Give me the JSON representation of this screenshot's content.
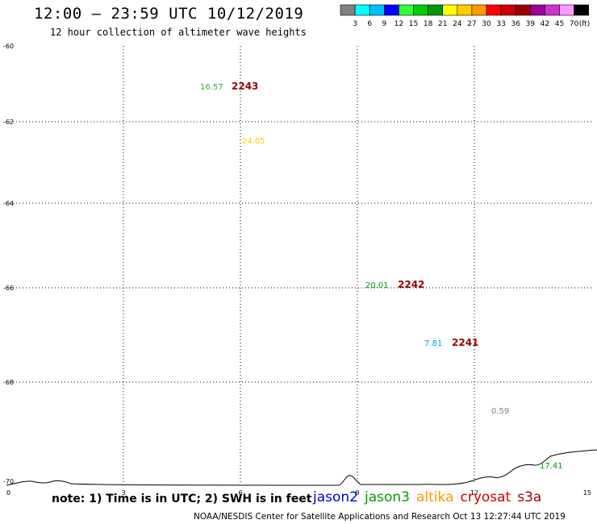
{
  "header": {
    "title": "12:00 – 23:59 UTC 10/12/2019",
    "subtitle": "12 hour collection of altimeter wave heights"
  },
  "color_scale": {
    "colors": [
      "#808080",
      "#00ffff",
      "#00bfff",
      "#0000ff",
      "#33ff33",
      "#00cc00",
      "#009900",
      "#ffff00",
      "#ffcc00",
      "#ff9900",
      "#ff0000",
      "#cc0000",
      "#990000",
      "#990099",
      "#cc33cc",
      "#ff99ff",
      "#000000"
    ],
    "labels": [
      "3",
      "6",
      "9",
      "12",
      "15",
      "18",
      "21",
      "24",
      "27",
      "30",
      "33",
      "36",
      "39",
      "42",
      "45",
      "70"
    ],
    "unit": "(ft)"
  },
  "axes": {
    "x_ticks": [
      "0",
      "3",
      "6",
      "9",
      "12",
      "15"
    ],
    "y_ticks": [
      "-60",
      "-62",
      "-64",
      "-66",
      "-68",
      "-70"
    ]
  },
  "observations": [
    {
      "value": "16.57",
      "color": "#33aa33"
    },
    {
      "value": "2243",
      "color": "#990000"
    },
    {
      "value": "24.05",
      "color": "#ffcc00"
    },
    {
      "value": "20.01",
      "color": "#009900"
    },
    {
      "value": "2242",
      "color": "#990000"
    },
    {
      "value": "7.81",
      "color": "#00a0e0"
    },
    {
      "value": "2241",
      "color": "#990000"
    },
    {
      "value": "0.59",
      "color": "#808080"
    },
    {
      "value": "17.41",
      "color": "#009900"
    }
  ],
  "note": "note: 1) Time is in UTC; 2) SWH is in feet",
  "legend": [
    {
      "name": "jason2",
      "color": "#0000cc"
    },
    {
      "name": "jason3",
      "color": "#009900"
    },
    {
      "name": "altika",
      "color": "#ff9900"
    },
    {
      "name": "cryosat",
      "color": "#cc0000"
    },
    {
      "name": "s3a",
      "color": "#990000"
    }
  ],
  "footer": "NOAA/NESDIS Center for Satellite Applications and Research     Oct 13 12:27:44 UTC 2019"
}
